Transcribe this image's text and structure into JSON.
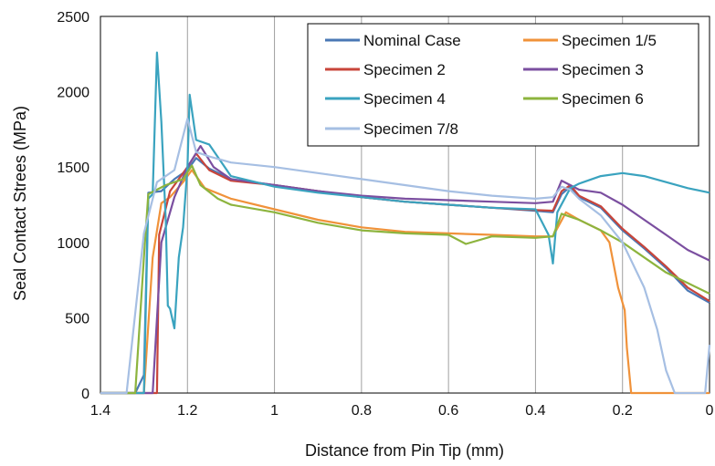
{
  "chart_data": {
    "type": "line",
    "title": "",
    "xlabel": "Distance from Pin Tip (mm)",
    "ylabel": "Seal Contact Strees (MPa)",
    "xlim": [
      1.4,
      0
    ],
    "ylim": [
      0,
      2500
    ],
    "x_reversed": true,
    "x_ticks": [
      "1.4",
      "1.2",
      "1",
      "0.8",
      "0.6",
      "0.4",
      "0.2",
      "0"
    ],
    "y_ticks": [
      "0",
      "500",
      "1000",
      "1500",
      "2000",
      "2500"
    ],
    "grid": "vertical",
    "legend_position": "top-right",
    "series": [
      {
        "name": "Nominal Case",
        "color": "#4a78b5",
        "points": [
          [
            1.4,
            0
          ],
          [
            1.32,
            0
          ],
          [
            1.3,
            120
          ],
          [
            1.29,
            1330
          ],
          [
            1.26,
            1340
          ],
          [
            1.23,
            1420
          ],
          [
            1.2,
            1480
          ],
          [
            1.18,
            1560
          ],
          [
            1.15,
            1490
          ],
          [
            1.1,
            1420
          ],
          [
            1.0,
            1380
          ],
          [
            0.9,
            1340
          ],
          [
            0.8,
            1300
          ],
          [
            0.7,
            1270
          ],
          [
            0.6,
            1250
          ],
          [
            0.5,
            1230
          ],
          [
            0.4,
            1210
          ],
          [
            0.36,
            1200
          ],
          [
            0.34,
            1320
          ],
          [
            0.32,
            1370
          ],
          [
            0.3,
            1300
          ],
          [
            0.25,
            1230
          ],
          [
            0.2,
            1080
          ],
          [
            0.15,
            960
          ],
          [
            0.1,
            830
          ],
          [
            0.05,
            680
          ],
          [
            0.0,
            600
          ]
        ]
      },
      {
        "name": "Specimen 1/5",
        "color": "#f0923a",
        "points": [
          [
            1.4,
            0
          ],
          [
            1.3,
            0
          ],
          [
            1.28,
            900
          ],
          [
            1.26,
            1260
          ],
          [
            1.24,
            1300
          ],
          [
            1.21,
            1400
          ],
          [
            1.19,
            1480
          ],
          [
            1.16,
            1360
          ],
          [
            1.1,
            1290
          ],
          [
            1.0,
            1220
          ],
          [
            0.9,
            1150
          ],
          [
            0.8,
            1100
          ],
          [
            0.7,
            1070
          ],
          [
            0.6,
            1060
          ],
          [
            0.5,
            1050
          ],
          [
            0.4,
            1040
          ],
          [
            0.36,
            1040
          ],
          [
            0.33,
            1200
          ],
          [
            0.3,
            1150
          ],
          [
            0.25,
            1080
          ],
          [
            0.23,
            1000
          ],
          [
            0.21,
            700
          ],
          [
            0.195,
            550
          ],
          [
            0.19,
            300
          ],
          [
            0.18,
            0
          ],
          [
            0.0,
            0
          ]
        ]
      },
      {
        "name": "Specimen 2",
        "color": "#c8453a",
        "points": [
          [
            1.4,
            0
          ],
          [
            1.27,
            0
          ],
          [
            1.265,
            1050
          ],
          [
            1.24,
            1340
          ],
          [
            1.2,
            1500
          ],
          [
            1.18,
            1590
          ],
          [
            1.15,
            1480
          ],
          [
            1.1,
            1410
          ],
          [
            1.0,
            1380
          ],
          [
            0.9,
            1340
          ],
          [
            0.8,
            1300
          ],
          [
            0.7,
            1270
          ],
          [
            0.6,
            1250
          ],
          [
            0.5,
            1230
          ],
          [
            0.4,
            1215
          ],
          [
            0.36,
            1210
          ],
          [
            0.34,
            1340
          ],
          [
            0.32,
            1380
          ],
          [
            0.3,
            1310
          ],
          [
            0.25,
            1240
          ],
          [
            0.2,
            1090
          ],
          [
            0.15,
            970
          ],
          [
            0.1,
            840
          ],
          [
            0.05,
            700
          ],
          [
            0.0,
            610
          ]
        ]
      },
      {
        "name": "Specimen 3",
        "color": "#7b4fa0",
        "points": [
          [
            1.4,
            0
          ],
          [
            1.28,
            0
          ],
          [
            1.26,
            1000
          ],
          [
            1.23,
            1300
          ],
          [
            1.2,
            1500
          ],
          [
            1.17,
            1640
          ],
          [
            1.14,
            1500
          ],
          [
            1.1,
            1420
          ],
          [
            1.0,
            1380
          ],
          [
            0.9,
            1340
          ],
          [
            0.8,
            1310
          ],
          [
            0.7,
            1290
          ],
          [
            0.6,
            1280
          ],
          [
            0.5,
            1270
          ],
          [
            0.4,
            1260
          ],
          [
            0.36,
            1270
          ],
          [
            0.34,
            1410
          ],
          [
            0.32,
            1380
          ],
          [
            0.3,
            1350
          ],
          [
            0.25,
            1330
          ],
          [
            0.2,
            1250
          ],
          [
            0.15,
            1150
          ],
          [
            0.1,
            1050
          ],
          [
            0.05,
            950
          ],
          [
            0.0,
            880
          ]
        ]
      },
      {
        "name": "Specimen 4",
        "color": "#3aa3bf",
        "points": [
          [
            1.4,
            0
          ],
          [
            1.3,
            0
          ],
          [
            1.29,
            1290
          ],
          [
            1.28,
            1320
          ],
          [
            1.27,
            2260
          ],
          [
            1.26,
            1800
          ],
          [
            1.25,
            1150
          ],
          [
            1.245,
            580
          ],
          [
            1.24,
            560
          ],
          [
            1.23,
            430
          ],
          [
            1.22,
            900
          ],
          [
            1.21,
            1100
          ],
          [
            1.2,
            1500
          ],
          [
            1.195,
            1980
          ],
          [
            1.18,
            1680
          ],
          [
            1.15,
            1650
          ],
          [
            1.1,
            1440
          ],
          [
            1.0,
            1370
          ],
          [
            0.9,
            1330
          ],
          [
            0.8,
            1300
          ],
          [
            0.7,
            1270
          ],
          [
            0.6,
            1250
          ],
          [
            0.5,
            1230
          ],
          [
            0.4,
            1220
          ],
          [
            0.37,
            1050
          ],
          [
            0.36,
            860
          ],
          [
            0.35,
            1200
          ],
          [
            0.32,
            1360
          ],
          [
            0.3,
            1390
          ],
          [
            0.25,
            1440
          ],
          [
            0.2,
            1460
          ],
          [
            0.15,
            1440
          ],
          [
            0.1,
            1400
          ],
          [
            0.05,
            1360
          ],
          [
            0.0,
            1330
          ]
        ]
      },
      {
        "name": "Specimen 6",
        "color": "#8db43e",
        "points": [
          [
            1.4,
            0
          ],
          [
            1.32,
            0
          ],
          [
            1.3,
            900
          ],
          [
            1.29,
            1320
          ],
          [
            1.25,
            1380
          ],
          [
            1.21,
            1420
          ],
          [
            1.19,
            1510
          ],
          [
            1.17,
            1380
          ],
          [
            1.13,
            1290
          ],
          [
            1.1,
            1250
          ],
          [
            1.0,
            1200
          ],
          [
            0.9,
            1130
          ],
          [
            0.8,
            1080
          ],
          [
            0.7,
            1060
          ],
          [
            0.6,
            1050
          ],
          [
            0.56,
            990
          ],
          [
            0.5,
            1040
          ],
          [
            0.4,
            1030
          ],
          [
            0.36,
            1040
          ],
          [
            0.34,
            1190
          ],
          [
            0.3,
            1150
          ],
          [
            0.25,
            1080
          ],
          [
            0.2,
            1000
          ],
          [
            0.15,
            900
          ],
          [
            0.1,
            800
          ],
          [
            0.05,
            730
          ],
          [
            0.0,
            660
          ]
        ]
      },
      {
        "name": "Specimen 7/8",
        "color": "#a6bfe3",
        "points": [
          [
            1.4,
            0
          ],
          [
            1.34,
            0
          ],
          [
            1.3,
            1060
          ],
          [
            1.27,
            1400
          ],
          [
            1.23,
            1480
          ],
          [
            1.2,
            1820
          ],
          [
            1.18,
            1600
          ],
          [
            1.15,
            1570
          ],
          [
            1.1,
            1530
          ],
          [
            1.0,
            1500
          ],
          [
            0.9,
            1460
          ],
          [
            0.8,
            1420
          ],
          [
            0.7,
            1380
          ],
          [
            0.6,
            1340
          ],
          [
            0.5,
            1310
          ],
          [
            0.4,
            1290
          ],
          [
            0.36,
            1300
          ],
          [
            0.34,
            1370
          ],
          [
            0.32,
            1350
          ],
          [
            0.3,
            1290
          ],
          [
            0.25,
            1180
          ],
          [
            0.2,
            1000
          ],
          [
            0.15,
            700
          ],
          [
            0.12,
            420
          ],
          [
            0.1,
            150
          ],
          [
            0.08,
            0
          ],
          [
            0.03,
            0
          ],
          [
            0.01,
            0
          ],
          [
            0.0,
            320
          ]
        ]
      }
    ]
  }
}
